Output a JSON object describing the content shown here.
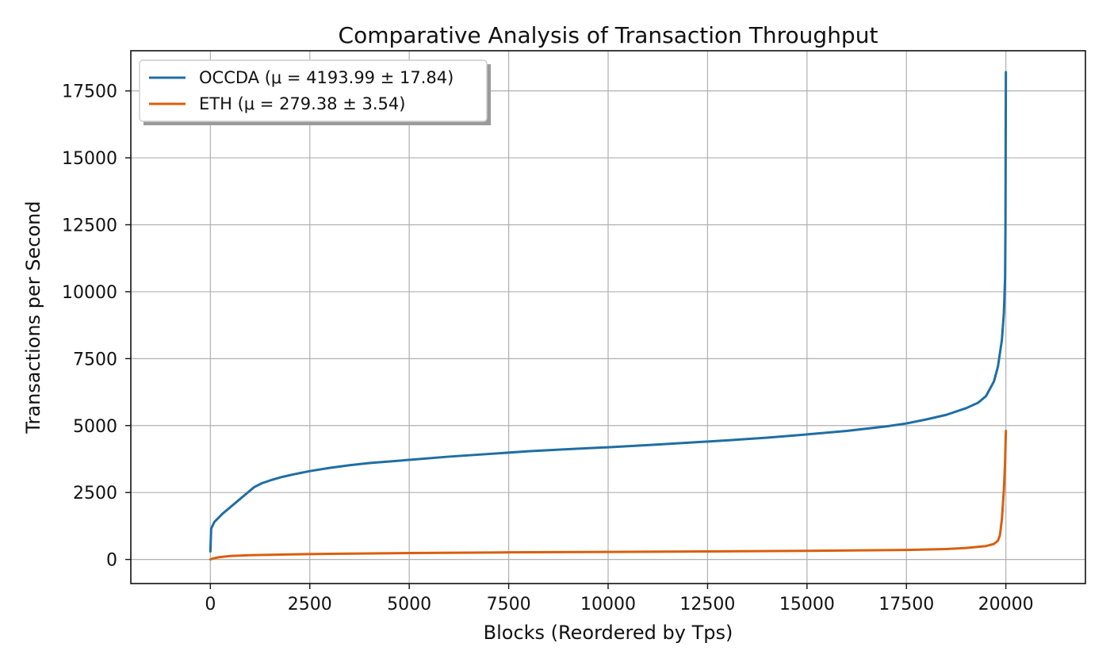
{
  "chart_data": {
    "type": "line",
    "title": "Comparative Analysis of Transaction Throughput",
    "xlabel": "Blocks (Reordered by Tps)",
    "ylabel": "Transactions per Second",
    "xlim": [
      -2000,
      22000
    ],
    "ylim": [
      -900,
      19000
    ],
    "xticks": [
      0,
      2500,
      5000,
      7500,
      10000,
      12500,
      15000,
      17500,
      20000
    ],
    "yticks": [
      0,
      2500,
      5000,
      7500,
      10000,
      12500,
      15000,
      17500
    ],
    "grid": true,
    "legend": {
      "position": "top-left",
      "entries": [
        "OCCDA (μ = 4193.99 ± 17.84)",
        "ETH (μ = 279.38 ± 3.54)"
      ]
    },
    "series": [
      {
        "name": "OCCDA (μ = 4193.99 ± 17.84)",
        "color": "#1f6ea3",
        "x": [
          0,
          20,
          100,
          200,
          300,
          500,
          700,
          900,
          1100,
          1300,
          1500,
          1800,
          2100,
          2500,
          3000,
          3500,
          4000,
          5000,
          6000,
          7000,
          8000,
          9000,
          10000,
          11000,
          12000,
          13000,
          14000,
          15000,
          16000,
          17000,
          17500,
          18000,
          18500,
          19000,
          19300,
          19500,
          19700,
          19800,
          19900,
          19950,
          19980,
          19990,
          19995,
          20000
        ],
        "y": [
          300,
          1150,
          1400,
          1550,
          1700,
          1950,
          2200,
          2450,
          2700,
          2850,
          2950,
          3080,
          3180,
          3300,
          3420,
          3520,
          3600,
          3720,
          3840,
          3940,
          4040,
          4120,
          4190,
          4270,
          4360,
          4450,
          4550,
          4670,
          4800,
          4970,
          5080,
          5230,
          5400,
          5650,
          5850,
          6100,
          6650,
          7200,
          8200,
          9200,
          10500,
          12500,
          15500,
          18200
        ]
      },
      {
        "name": "ETH (μ = 279.38 ± 3.54)",
        "color": "#d95f0e",
        "x": [
          0,
          50,
          200,
          500,
          1000,
          2000,
          3000,
          5000,
          7500,
          10000,
          12500,
          15000,
          17500,
          18500,
          19000,
          19500,
          19700,
          19800,
          19850,
          19900,
          19950,
          19980,
          20000
        ],
        "y": [
          0,
          30,
          80,
          130,
          160,
          190,
          210,
          240,
          265,
          280,
          300,
          320,
          355,
          390,
          430,
          500,
          580,
          700,
          900,
          1500,
          2600,
          3600,
          4800
        ]
      }
    ]
  }
}
